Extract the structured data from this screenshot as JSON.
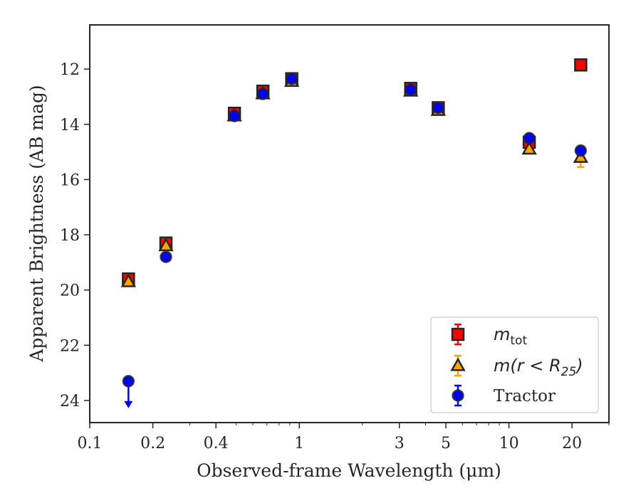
{
  "chart_data": {
    "type": "scatter",
    "title": "",
    "xlabel": "Observed-frame Wavelength (μm)",
    "ylabel": "Apparent Brightness (AB mag)",
    "xscale": "log",
    "yaxis_inverted": true,
    "xlim": [
      0.1,
      30
    ],
    "ylim": [
      24.8,
      10.4
    ],
    "x_ticks": [
      {
        "value": 0.1,
        "label": "0.1"
      },
      {
        "value": 0.2,
        "label": "0.2"
      },
      {
        "value": 0.4,
        "label": "0.4"
      },
      {
        "value": 1,
        "label": "1"
      },
      {
        "value": 3,
        "label": "3"
      },
      {
        "value": 5,
        "label": "5"
      },
      {
        "value": 10,
        "label": "10"
      },
      {
        "value": 20,
        "label": "20"
      }
    ],
    "y_ticks": [
      {
        "value": 12,
        "label": "12"
      },
      {
        "value": 14,
        "label": "14"
      },
      {
        "value": 16,
        "label": "16"
      },
      {
        "value": 18,
        "label": "18"
      },
      {
        "value": 20,
        "label": "20"
      },
      {
        "value": 22,
        "label": "22"
      },
      {
        "value": 24,
        "label": "24"
      }
    ],
    "grid": false,
    "legend_position": "lower-right",
    "series": [
      {
        "name": "m_tot",
        "marker": "square",
        "color": "#ff0000",
        "edge": "#262626",
        "errcolor": "#ff0000",
        "x": [
          0.153,
          0.231,
          0.49,
          0.67,
          0.92,
          3.4,
          4.6,
          12.5,
          22.0
        ],
        "y": [
          19.6,
          18.3,
          13.6,
          12.8,
          12.35,
          12.7,
          13.4,
          14.65,
          11.85
        ],
        "err": [
          0.05,
          0.05,
          0.05,
          0.05,
          0.05,
          0.05,
          0.05,
          0.05,
          0.05
        ]
      },
      {
        "name": "m(r < R_25)",
        "marker": "triangle",
        "color": "#ffa500",
        "edge": "#262626",
        "errcolor": "#ffa500",
        "x": [
          0.153,
          0.231,
          0.49,
          0.67,
          0.92,
          3.4,
          4.6,
          12.5,
          22.0
        ],
        "y": [
          19.7,
          18.4,
          13.7,
          12.9,
          12.45,
          12.8,
          13.5,
          14.9,
          15.2
        ],
        "err": [
          0.05,
          0.05,
          0.05,
          0.05,
          0.05,
          0.05,
          0.05,
          0.05,
          0.35
        ]
      },
      {
        "name": "Tractor",
        "marker": "circle",
        "color": "#0000ff",
        "edge": "#262626",
        "errcolor": "#0000ff",
        "x": [
          0.153,
          0.231,
          0.49,
          0.67,
          0.92,
          3.4,
          4.6,
          12.5,
          22.0
        ],
        "y": [
          23.3,
          18.8,
          13.7,
          12.9,
          12.35,
          12.75,
          13.4,
          14.5,
          14.95
        ],
        "err": [
          0.0,
          0.05,
          0.05,
          0.05,
          0.05,
          0.05,
          0.05,
          0.05,
          0.05
        ],
        "upper_limit_index": 0
      }
    ],
    "legend": {
      "entries": [
        {
          "base": "m",
          "sub": "tot",
          "series": 0
        },
        {
          "base": "m(r < R",
          "sub": "25",
          "suffix": ")",
          "series": 1
        },
        {
          "base": "Tractor",
          "series": 2
        }
      ]
    }
  }
}
